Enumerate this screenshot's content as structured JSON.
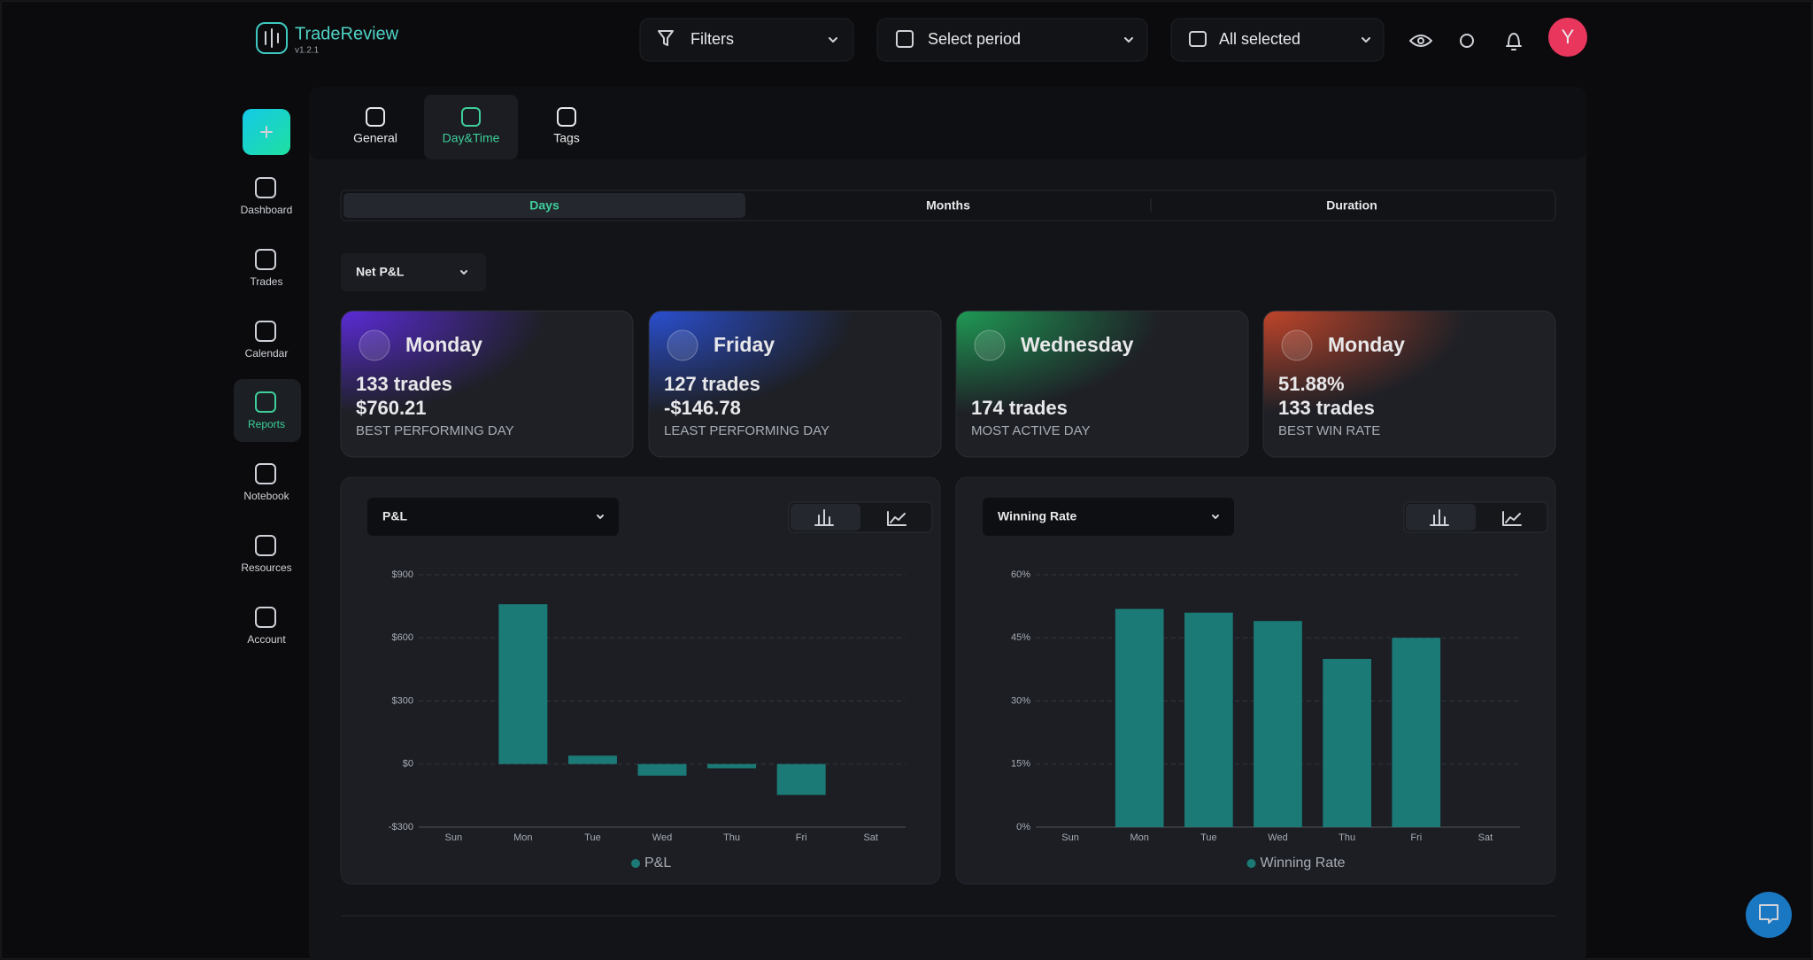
{
  "brand": {
    "name": "TradeReview",
    "version": "v1.2.1"
  },
  "topbar": {
    "filters": "Filters",
    "period": "Select period",
    "accounts": "All selected",
    "avatar": "Y"
  },
  "sidebar": [
    "Dashboard",
    "Trades",
    "Calendar",
    "Reports",
    "Notebook",
    "Resources",
    "Account"
  ],
  "tabs": [
    "General",
    "Day&Time",
    "Tags"
  ],
  "segments": [
    "Days",
    "Months",
    "Duration"
  ],
  "metric_select": "Net P&L",
  "cards": [
    {
      "title": "Monday",
      "lines": [
        "133 trades",
        "$760.21"
      ],
      "caption": "BEST PERFORMING DAY"
    },
    {
      "title": "Friday",
      "lines": [
        "127 trades",
        "-$146.78"
      ],
      "caption": "LEAST PERFORMING DAY"
    },
    {
      "title": "Wednesday",
      "lines": [
        "174 trades"
      ],
      "caption": "MOST ACTIVE DAY"
    },
    {
      "title": "Monday",
      "lines": [
        "51.88%",
        "133 trades"
      ],
      "caption": "BEST WIN RATE"
    }
  ],
  "chart_data": [
    {
      "type": "bar",
      "selector": "P&L",
      "categories": [
        "Sun",
        "Mon",
        "Tue",
        "Wed",
        "Thu",
        "Fri",
        "Sat"
      ],
      "series": [
        {
          "name": "P&L",
          "color": "#1b7a76",
          "values": [
            0,
            760.21,
            40,
            -55,
            -20,
            -146.78,
            0
          ]
        }
      ],
      "ylim": [
        -300,
        900
      ],
      "yticks": [
        {
          "value": -300,
          "label": "-$300"
        },
        {
          "value": 0,
          "label": "$0"
        },
        {
          "value": 300,
          "label": "$300"
        },
        {
          "value": 600,
          "label": "$600"
        },
        {
          "value": 900,
          "label": "$900"
        }
      ],
      "grid": true
    },
    {
      "type": "bar",
      "selector": "Winning Rate",
      "categories": [
        "Sun",
        "Mon",
        "Tue",
        "Wed",
        "Thu",
        "Fri",
        "Sat"
      ],
      "series": [
        {
          "name": "Winning Rate",
          "color": "#1b7a76",
          "values": [
            0,
            51.88,
            51,
            49,
            40,
            45,
            0
          ]
        }
      ],
      "ylim": [
        0,
        60
      ],
      "yticks": [
        {
          "value": 0,
          "label": "0%"
        },
        {
          "value": 15,
          "label": "15%"
        },
        {
          "value": 30,
          "label": "30%"
        },
        {
          "value": 45,
          "label": "45%"
        },
        {
          "value": 60,
          "label": "60%"
        }
      ],
      "grid": true
    }
  ]
}
